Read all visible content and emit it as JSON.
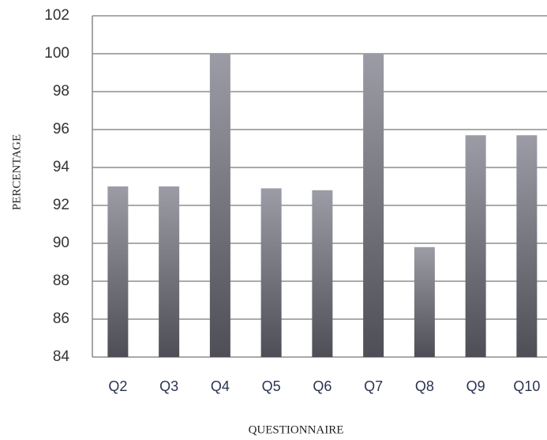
{
  "chart_data": {
    "type": "bar",
    "categories": [
      "Q2",
      "Q3",
      "Q4",
      "Q5",
      "Q6",
      "Q7",
      "Q8",
      "Q9",
      "Q10"
    ],
    "values": [
      93,
      93,
      100,
      92.9,
      92.8,
      100,
      89.8,
      95.7,
      95.7
    ],
    "color": "#9c9ca6",
    "ylim": [
      84,
      102
    ],
    "yticks": [
      84,
      86,
      88,
      90,
      92,
      94,
      96,
      98,
      100,
      102
    ],
    "grid": true,
    "y_label": "PERCENTAGE",
    "x_label": "QUESTIONNAIRE"
  }
}
